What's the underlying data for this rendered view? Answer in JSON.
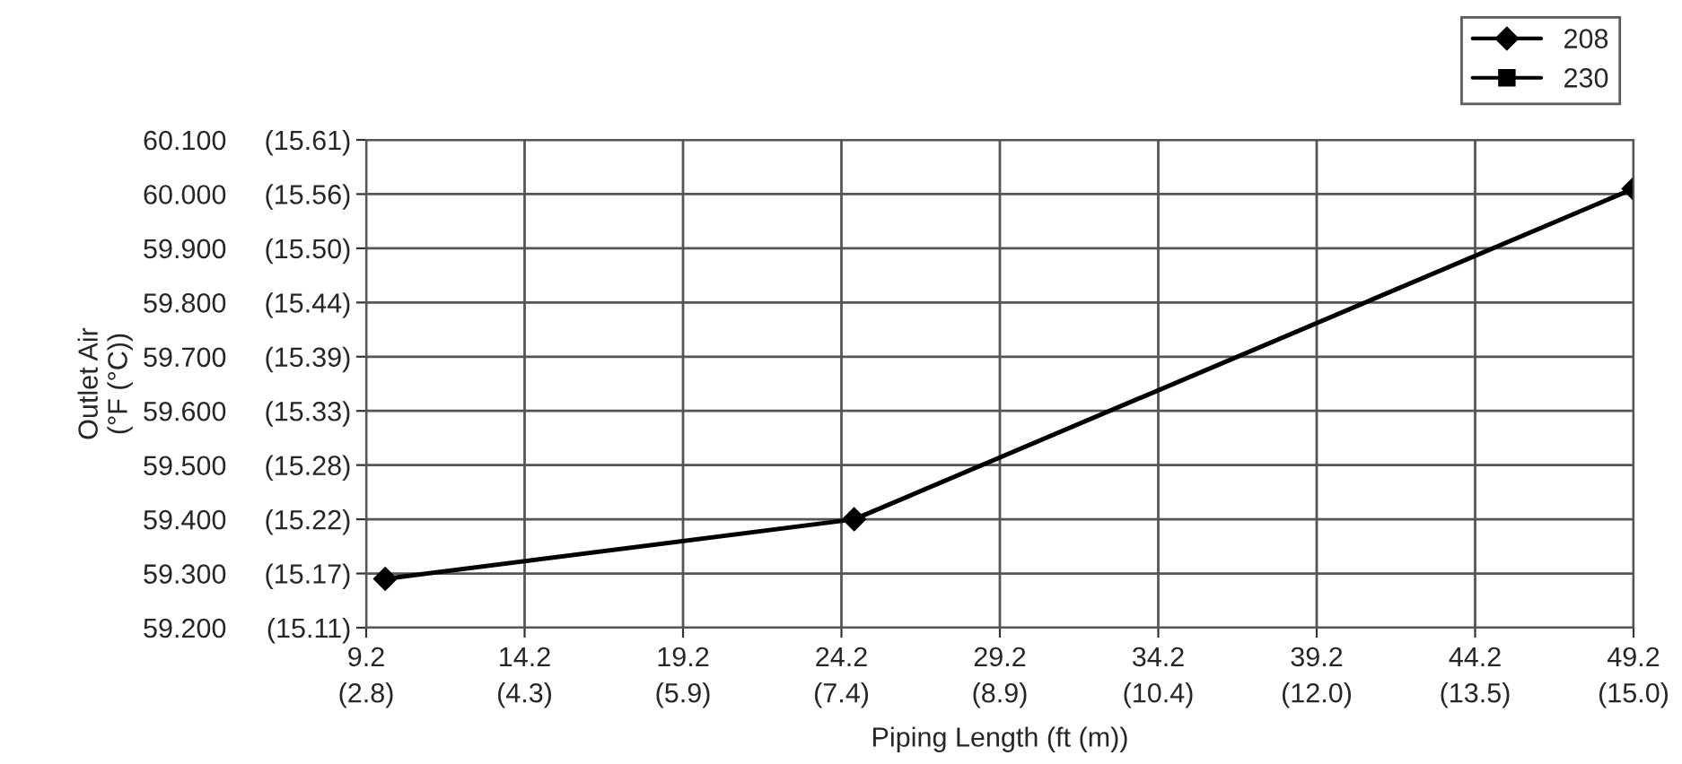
{
  "chart_data": {
    "type": "line",
    "xlabel": "Piping Length (ft (m))",
    "ylabel": "Outlet Air\n(°F (°C))",
    "xlim": [
      9.2,
      49.2
    ],
    "ylim": [
      59.2,
      60.1
    ],
    "xticks": [
      9.2,
      14.2,
      19.2,
      24.2,
      29.2,
      34.2,
      39.2,
      44.2,
      49.2
    ],
    "x2lim": [
      2.81,
      15.002
    ],
    "x2ticks": [
      {
        "value": 2.81,
        "label": "(2.8)"
      },
      {
        "value": 4.334,
        "label": "(4.3)"
      },
      {
        "value": 5.858,
        "label": "(5.9)"
      },
      {
        "value": 7.382,
        "label": "(7.4)"
      },
      {
        "value": 8.906,
        "label": "(8.9)"
      },
      {
        "value": 10.43,
        "label": "(10.4)"
      },
      {
        "value": 11.954,
        "label": "(12.0)"
      },
      {
        "value": 13.478,
        "label": "(13.5)"
      },
      {
        "value": 15.002,
        "label": "(15.0)"
      }
    ],
    "yticks": [
      {
        "value": 59.2,
        "label": "59.200"
      },
      {
        "value": 59.3,
        "label": "59.300"
      },
      {
        "value": 59.4,
        "label": "59.400"
      },
      {
        "value": 59.5,
        "label": "59.500"
      },
      {
        "value": 59.6,
        "label": "59.600"
      },
      {
        "value": 59.7,
        "label": "59.700"
      },
      {
        "value": 59.8,
        "label": "59.800"
      },
      {
        "value": 59.9,
        "label": "59.900"
      },
      {
        "value": 60.0,
        "label": "60.000"
      },
      {
        "value": 60.1,
        "label": "60.100"
      }
    ],
    "y2lim": [
      15.1111,
      15.6111
    ],
    "y2ticks": [
      {
        "value": 15.1111,
        "label": "(15.11)"
      },
      {
        "value": 15.1667,
        "label": "(15.17)"
      },
      {
        "value": 15.2222,
        "label": "(15.22)"
      },
      {
        "value": 15.2778,
        "label": "(15.28)"
      },
      {
        "value": 15.3333,
        "label": "(15.33)"
      },
      {
        "value": 15.3889,
        "label": "(15.39)"
      },
      {
        "value": 15.4444,
        "label": "(15.44)"
      },
      {
        "value": 15.5,
        "label": "(15.50)"
      },
      {
        "value": 15.5556,
        "label": "(15.56)"
      },
      {
        "value": 15.6111,
        "label": "(15.61)"
      }
    ],
    "grid": true,
    "legend": "top right",
    "series": [
      {
        "name": "208",
        "color": "#000000",
        "marker": "diamond",
        "x": [
          9.8,
          24.6,
          49.2
        ],
        "values": [
          59.29,
          59.4,
          60.01
        ]
      },
      {
        "name": "230",
        "color": "#000000",
        "marker": "square",
        "values": [
          null,
          null,
          null
        ]
      }
    ]
  }
}
